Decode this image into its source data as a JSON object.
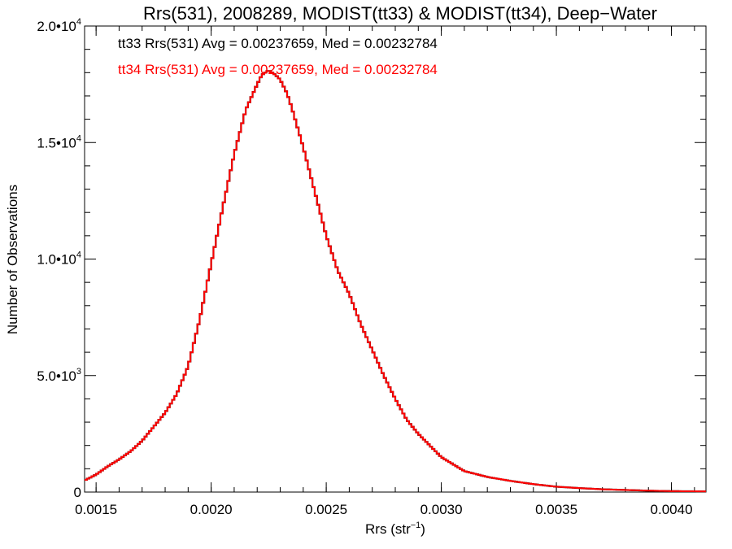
{
  "chart_data": {
    "type": "line",
    "title": "Rrs(531), 2008289, MODIST(tt33) & MODIST(tt34), Deep−Water",
    "xlabel": "Rrs (str",
    "xlabel_sup": "−1",
    "xlabel_close": ")",
    "ylabel": "Number of Observations",
    "xlim": [
      0.00145,
      0.00415
    ],
    "ylim": [
      0,
      20000
    ],
    "x_ticks": [
      0.0015,
      0.002,
      0.0025,
      0.003,
      0.0035,
      0.004
    ],
    "x_tick_labels": [
      "0.0015",
      "0.0020",
      "0.0025",
      "0.0030",
      "0.0035",
      "0.0040"
    ],
    "y_ticks": [
      {
        "value": 0,
        "mantissa": "0",
        "exp": ""
      },
      {
        "value": 5000,
        "mantissa": "5.0•10",
        "exp": "3"
      },
      {
        "value": 10000,
        "mantissa": "1.0•10",
        "exp": "4"
      },
      {
        "value": 15000,
        "mantissa": "1.5•10",
        "exp": "4"
      },
      {
        "value": 20000,
        "mantissa": "2.0•10",
        "exp": "4"
      }
    ],
    "grid": false,
    "annotations": [
      {
        "text": "tt33 Rrs(531) Avg = 0.00237659, Med = 0.00232784",
        "color": "#000000"
      },
      {
        "text": "tt34 Rrs(531) Avg = 0.00237659, Med = 0.00232784",
        "color": "#ff0000"
      }
    ],
    "series": [
      {
        "color": "#ff0000",
        "overlays": "#000000",
        "x": [
          0.00145,
          0.0015,
          0.00155,
          0.0016,
          0.00165,
          0.0017,
          0.00175,
          0.0018,
          0.00185,
          0.0019,
          0.00195,
          0.002,
          0.00205,
          0.0021,
          0.00215,
          0.0022,
          0.00222,
          0.00225,
          0.00228,
          0.0023,
          0.00233,
          0.00235,
          0.0024,
          0.00245,
          0.0025,
          0.00255,
          0.0026,
          0.00265,
          0.0027,
          0.00275,
          0.0028,
          0.00285,
          0.0029,
          0.00295,
          0.003,
          0.00305,
          0.0031,
          0.0032,
          0.0033,
          0.0034,
          0.0035,
          0.0036,
          0.0037,
          0.0038,
          0.0039,
          0.004,
          0.00415
        ],
        "values": [
          500,
          750,
          1100,
          1400,
          1750,
          2200,
          2800,
          3400,
          4200,
          5400,
          7400,
          9800,
          12200,
          14500,
          16400,
          17500,
          17900,
          18100,
          17900,
          17700,
          17100,
          16500,
          14800,
          12900,
          11000,
          9500,
          8500,
          7200,
          6100,
          5000,
          4000,
          3100,
          2500,
          2000,
          1500,
          1200,
          900,
          650,
          480,
          340,
          230,
          170,
          120,
          90,
          60,
          40,
          30
        ]
      }
    ]
  }
}
